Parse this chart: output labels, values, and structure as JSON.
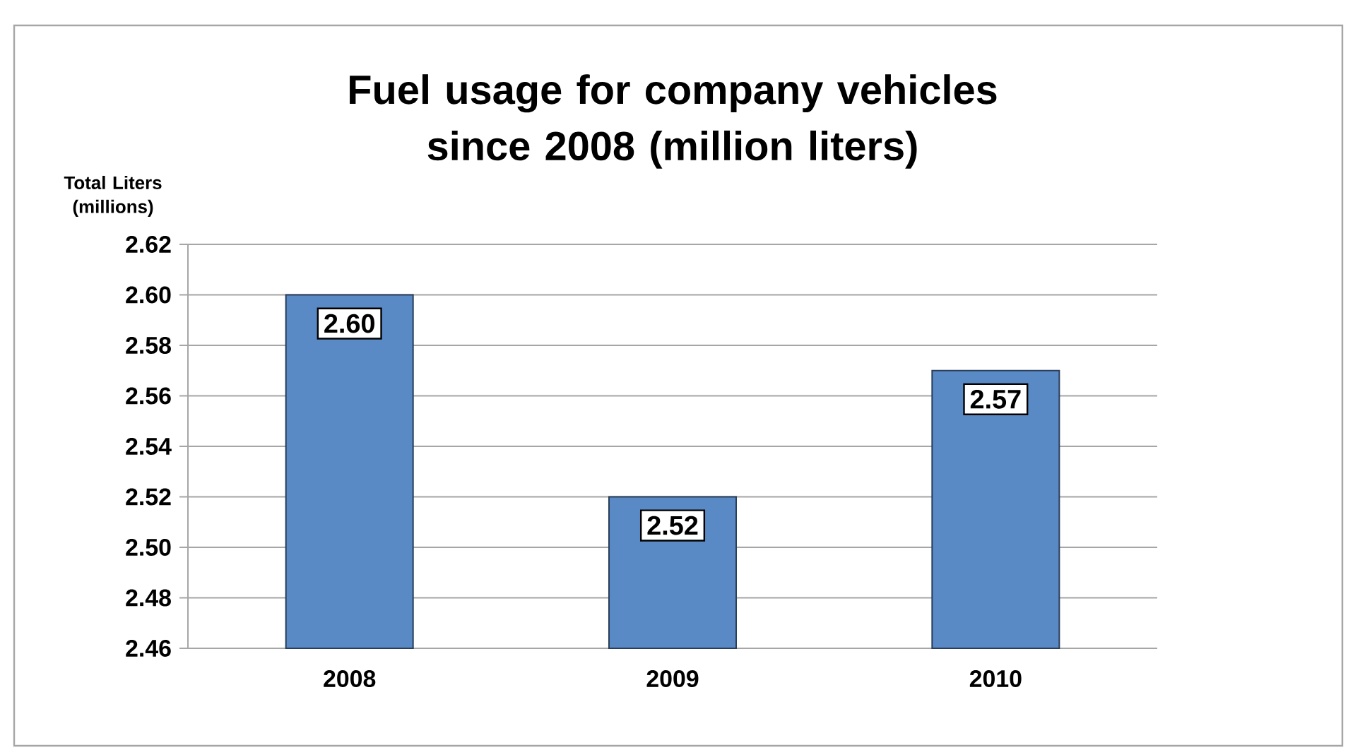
{
  "chart_data": {
    "type": "bar",
    "title": "Fuel usage for company vehicles since 2008 (million liters)",
    "ylabel": "Total Liters (millions)",
    "categories": [
      "2008",
      "2009",
      "2010"
    ],
    "values": [
      2.6,
      2.52,
      2.57
    ],
    "value_labels": [
      "2.60",
      "2.52",
      "2.57"
    ],
    "color": "#5a8ac6",
    "ylim": [
      2.46,
      2.62
    ],
    "yticks": [
      {
        "value": 2.46,
        "label": "2.46"
      },
      {
        "value": 2.48,
        "label": "2.48"
      },
      {
        "value": 2.5,
        "label": "2.50"
      },
      {
        "value": 2.52,
        "label": "2.52"
      },
      {
        "value": 2.54,
        "label": "2.54"
      },
      {
        "value": 2.56,
        "label": "2.56"
      },
      {
        "value": 2.58,
        "label": "2.58"
      },
      {
        "value": 2.6,
        "label": "2.60"
      },
      {
        "value": 2.62,
        "label": "2.62"
      }
    ],
    "grid": "y"
  }
}
